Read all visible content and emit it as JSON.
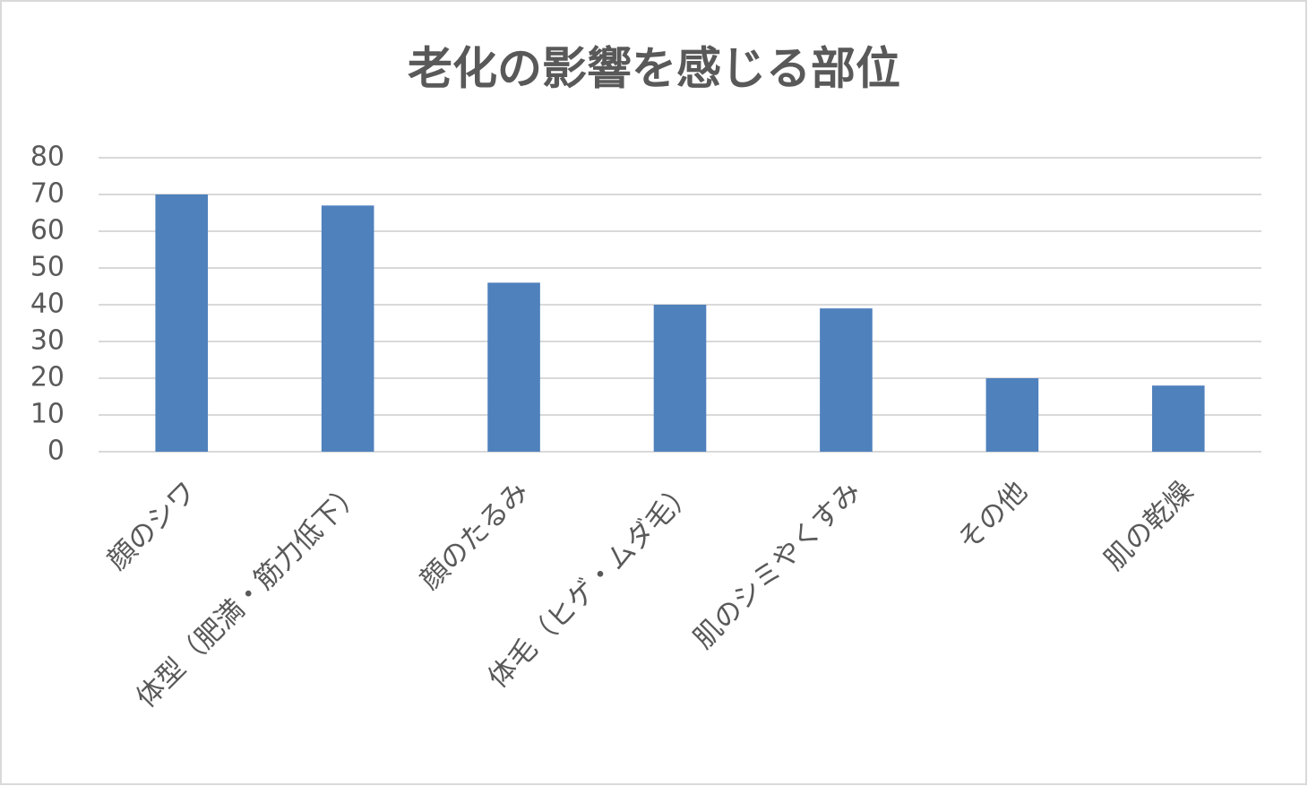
{
  "chart_data": {
    "type": "bar",
    "title": "老化の影響を感じる部位",
    "categories": [
      "顔のシワ",
      "体型（肥満・筋力低下）",
      "顔のたるみ",
      "体毛（ヒゲ・ムダ毛）",
      "肌のシミやくすみ",
      "その他",
      "肌の乾燥"
    ],
    "values": [
      70,
      67,
      46,
      40,
      39,
      20,
      18
    ],
    "color": "#4f81bd",
    "ylim": [
      0,
      80
    ],
    "yticks": [
      0,
      10,
      20,
      30,
      40,
      50,
      60,
      70,
      80
    ],
    "grid": true
  }
}
